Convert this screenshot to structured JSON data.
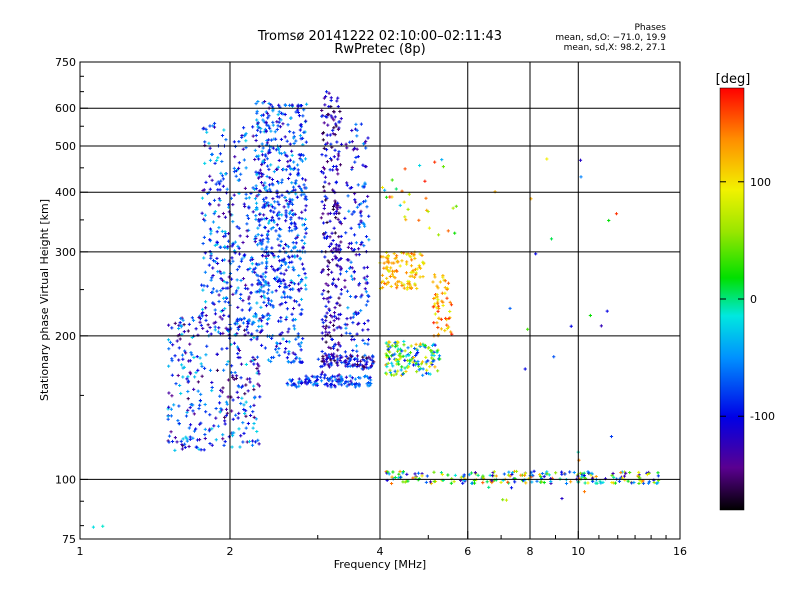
{
  "chart_data": {
    "type": "scatter",
    "title": "Tromsø 20141222 02:10:00–02:11:43",
    "subtitle": "RwPretec (8p)",
    "info_header": "Phases",
    "info_lines": [
      "mean, sd,O: −71.0, 19.9",
      "mean, sd,X:  98.2, 27.1"
    ],
    "xlabel": "Frequency [MHz]",
    "ylabel": "Stationary phase Virtual Height [km]",
    "xscale": "log",
    "yscale": "log",
    "xlim": [
      1,
      16
    ],
    "ylim": [
      75,
      750
    ],
    "xticks": [
      {
        "v": 1,
        "label": "1"
      },
      {
        "v": 2,
        "label": "2"
      },
      {
        "v": 4,
        "label": "4"
      },
      {
        "v": 6,
        "label": "6"
      },
      {
        "v": 8,
        "label": "8"
      },
      {
        "v": 10,
        "label": "10"
      },
      {
        "v": 16,
        "label": "16"
      }
    ],
    "yticks": [
      {
        "v": 75,
        "label": "75"
      },
      {
        "v": 100,
        "label": "100"
      },
      {
        "v": 200,
        "label": "200"
      },
      {
        "v": 300,
        "label": "300"
      },
      {
        "v": 400,
        "label": "400"
      },
      {
        "v": 500,
        "label": "500"
      },
      {
        "v": 600,
        "label": "600"
      },
      {
        "v": 750,
        "label": "750"
      }
    ],
    "xgrid": [
      2,
      4,
      6,
      8,
      10
    ],
    "ygrid": [
      100,
      200,
      300,
      400,
      500,
      600
    ],
    "colorbar": {
      "label": "[deg]",
      "range": [
        -180,
        180
      ],
      "ticks": [
        {
          "v": 100,
          "label": "100"
        },
        {
          "v": 0,
          "label": "0"
        },
        {
          "v": -100,
          "label": "-100"
        }
      ]
    },
    "clusters": [
      {
        "name": "E-layer trace",
        "f": [
          4.1,
          14.5
        ],
        "h": [
          98,
          104
        ],
        "phase": [
          -140,
          160
        ],
        "n": 230
      },
      {
        "name": "band 2 MHz low",
        "f": [
          1.5,
          2.3
        ],
        "h": [
          115,
          220
        ],
        "phase": [
          -160,
          -20
        ],
        "n": 330
      },
      {
        "name": "band 2 MHz high",
        "f": [
          1.75,
          2.4
        ],
        "h": [
          200,
          560
        ],
        "phase": [
          -140,
          -20
        ],
        "n": 380
      },
      {
        "name": "band 2.5 MHz",
        "f": [
          2.25,
          2.85
        ],
        "h": [
          250,
          620
        ],
        "phase": [
          -130,
          -30
        ],
        "n": 460
      },
      {
        "name": "band 2.5 MHz low",
        "f": [
          2.3,
          2.8
        ],
        "h": [
          175,
          260
        ],
        "phase": [
          -130,
          -30
        ],
        "n": 120
      },
      {
        "name": "band 3.2 MHz",
        "f": [
          3.05,
          3.35
        ],
        "h": [
          160,
          650
        ],
        "phase": [
          -170,
          -80
        ],
        "n": 280
      },
      {
        "name": "band 3.6 MHz",
        "f": [
          3.4,
          3.8
        ],
        "h": [
          170,
          560
        ],
        "phase": [
          -140,
          -40
        ],
        "n": 170
      },
      {
        "name": "trace 160 km",
        "f": [
          2.6,
          3.9
        ],
        "h": [
          156,
          165
        ],
        "phase": [
          -120,
          -40
        ],
        "n": 110
      },
      {
        "name": "trace 175 km",
        "f": [
          3.0,
          3.9
        ],
        "h": [
          172,
          182
        ],
        "phase": [
          -170,
          -60
        ],
        "n": 80
      },
      {
        "name": "F rise 4-5 MHz",
        "f": [
          4.1,
          5.3
        ],
        "h": [
          165,
          195
        ],
        "phase": [
          -100,
          130
        ],
        "n": 160
      },
      {
        "name": "F2 4-5 MHz",
        "f": [
          4.0,
          4.9
        ],
        "h": [
          250,
          300
        ],
        "phase": [
          80,
          150
        ],
        "n": 110
      },
      {
        "name": "F2 5-5.6 MHz",
        "f": [
          5.1,
          5.6
        ],
        "h": [
          200,
          270
        ],
        "phase": [
          80,
          170
        ],
        "n": 60
      },
      {
        "name": "scatter 4-6 MHz",
        "f": [
          4.0,
          5.8
        ],
        "h": [
          310,
          470
        ],
        "phase": [
          -40,
          175
        ],
        "n": 30
      },
      {
        "name": "scatter high f",
        "f": [
          6.5,
          12
        ],
        "h": [
          90,
          480
        ],
        "phase": [
          -130,
          170
        ],
        "n": 28
      },
      {
        "name": "outlier",
        "f": [
          1.05,
          1.12
        ],
        "h": [
          77,
          80
        ],
        "phase": [
          -20,
          -10
        ],
        "n": 2
      }
    ]
  }
}
